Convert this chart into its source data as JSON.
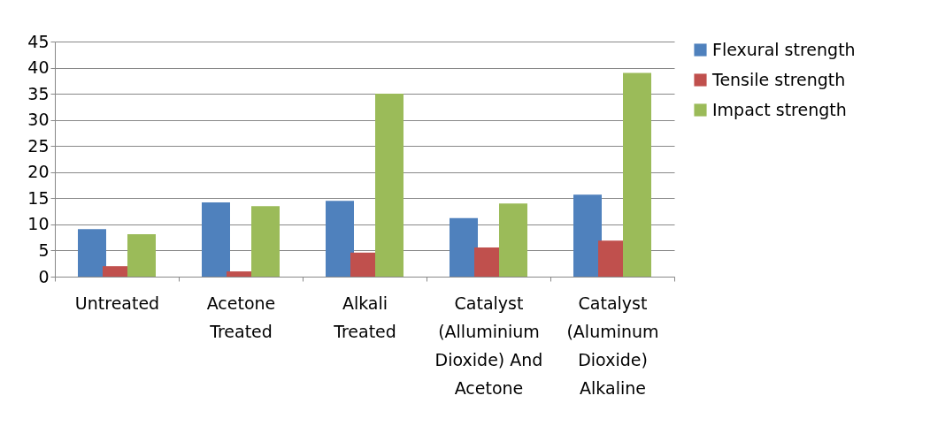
{
  "chart_data": {
    "type": "bar",
    "categories": [
      "Untreated",
      "Acetone Treated",
      "Alkali Treated",
      "Catalyst (Alluminium Dioxide) And Acetone",
      "Catalyst (Aluminum Dioxide) Alkaline"
    ],
    "series": [
      {
        "name": "Flexural strength",
        "color": "#4f81bd",
        "values": [
          9.1,
          14.2,
          14.5,
          11.2,
          15.7
        ]
      },
      {
        "name": "Tensile strength",
        "color": "#c0504d",
        "values": [
          2,
          1,
          4.6,
          5.6,
          6.9
        ]
      },
      {
        "name": "Impact strength",
        "color": "#9bbb59",
        "values": [
          8.1,
          13.5,
          35,
          14,
          39
        ]
      }
    ],
    "ylim": [
      0,
      45
    ],
    "yticks": [
      0,
      5,
      10,
      15,
      20,
      25,
      30,
      35,
      40,
      45
    ],
    "grid": "y",
    "legend": "right"
  }
}
